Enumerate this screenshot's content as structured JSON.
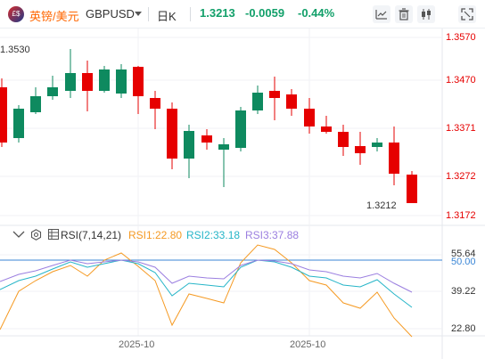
{
  "toolbar": {
    "symbol_icon_text": "£$",
    "symbol_name": "英镑/美元",
    "symbol_code": "GBPUSD",
    "timeframe": "日K",
    "price": "1.3213",
    "change": "-0.0059",
    "change_pct": "-0.44%",
    "colors": {
      "brand": "#ff6600",
      "quote": "#12a06a"
    },
    "icons": [
      "line-chart-icon",
      "delete-icon",
      "candlestick-icon",
      "fullscreen-icon"
    ]
  },
  "price_axis": [
    "1.3570",
    "1.3470",
    "1.3371",
    "1.3272",
    "1.3172"
  ],
  "annotations": {
    "high": "1.3530",
    "low": "1.3212"
  },
  "rsi": {
    "title": "RSI(7,14,21)",
    "rsi1": "RSI1:22.80",
    "rsi2": "RSI2:33.18",
    "rsi3": "RSI3:37.88",
    "axis": [
      "55.64",
      "50.00",
      "39.22",
      "22.80"
    ],
    "colors": {
      "rsi1": "#f59a23",
      "rsi2": "#26b5c8",
      "rsi3": "#9b7fe0",
      "ref": "#3a86d6"
    }
  },
  "dates": [
    "2025-10",
    "2025-10"
  ],
  "colors": {
    "up": "#0e8a5f",
    "down": "#e60000"
  }
}
